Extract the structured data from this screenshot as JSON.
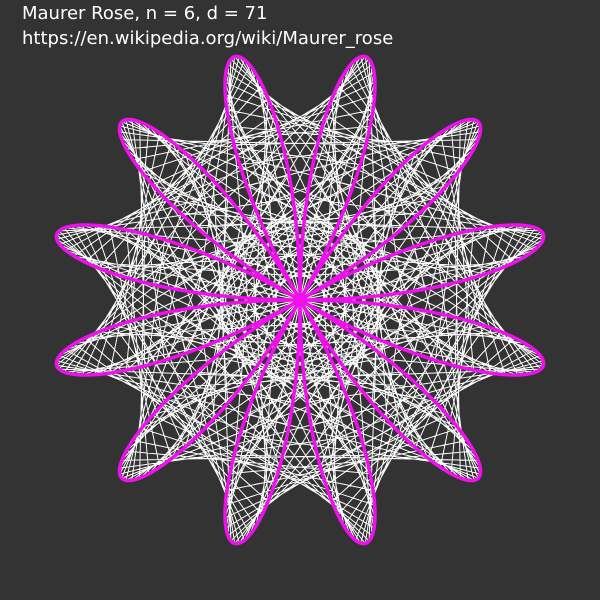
{
  "caption": {
    "title": "Maurer Rose, n = 6, d = 71",
    "url": "https://en.wikipedia.org/wiki/Maurer_rose"
  },
  "rose": {
    "n": 6,
    "d": 71,
    "rotation_degrees": -90
  },
  "colors": {
    "background": "#333333",
    "text": "#ffffff",
    "maurer_lines": "#ffffff",
    "rose_curve": "#ee11ee"
  }
}
